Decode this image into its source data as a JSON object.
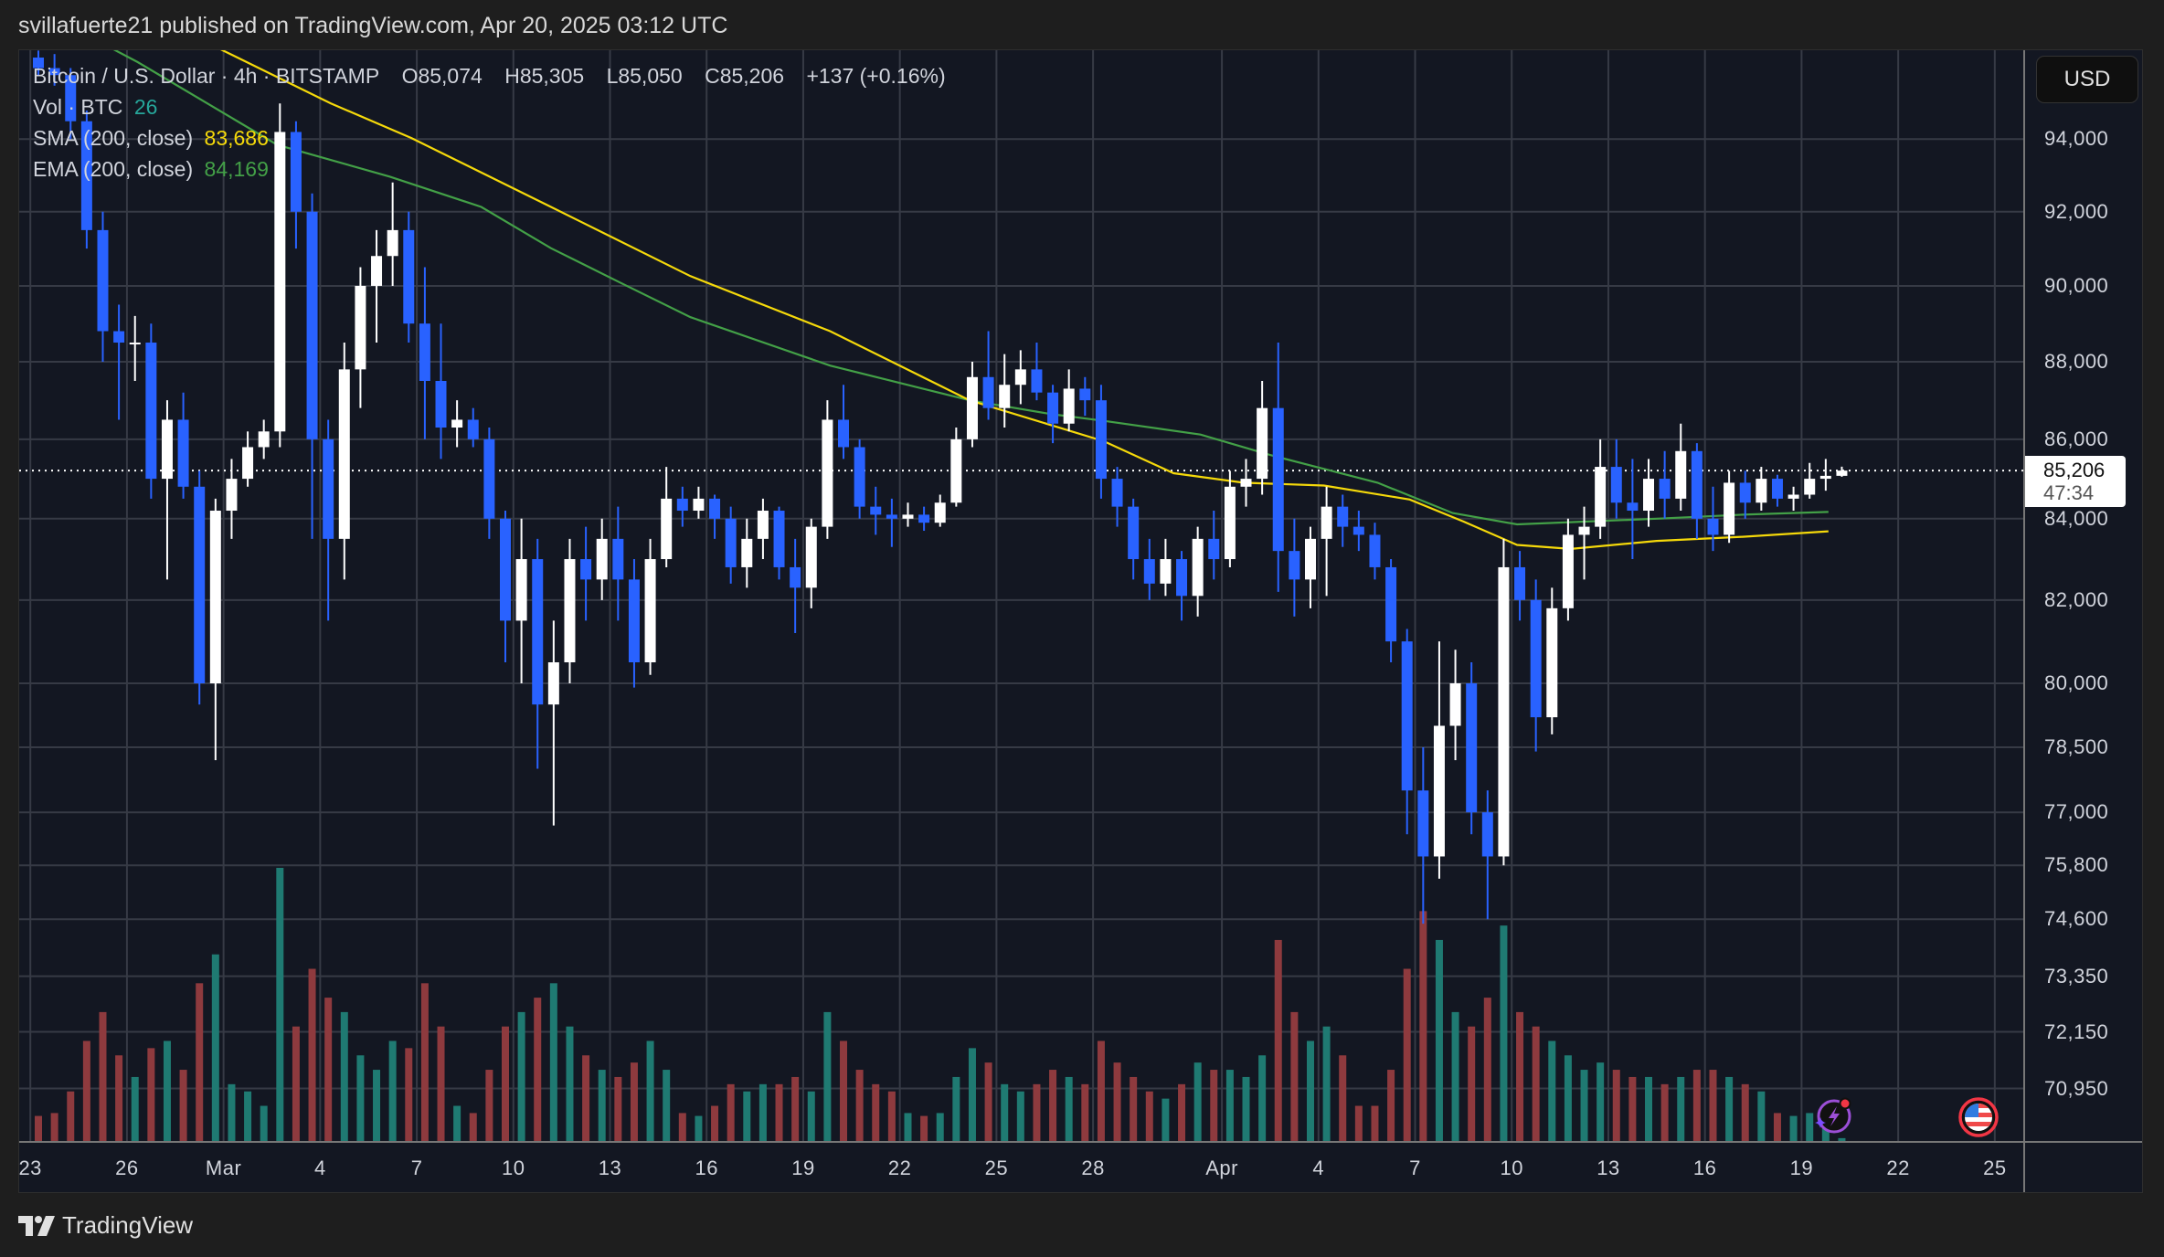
{
  "header": {
    "published": "svillafuerte21 published on TradingView.com, Apr 20, 2025 03:12 UTC"
  },
  "legend": {
    "symbol": "Bitcoin / U.S. Dollar · 4h · BITSTAMP",
    "open": "O85,074",
    "high": "H85,305",
    "low": "L85,050",
    "close": "C85,206",
    "change": "+137 (+0.16%)",
    "vol_label": "Vol · BTC",
    "vol_value": "26",
    "sma_label": "SMA (200, close)",
    "sma_value": "83,686",
    "ema_label": "EMA (200, close)",
    "ema_value": "84,169"
  },
  "price_axis": {
    "currency_button": "USD",
    "last_price": "85,206",
    "countdown": "47:34"
  },
  "footer": {
    "brand": "TradingView"
  },
  "icons": {
    "logo": "tradingview-logo-icon",
    "event1": "lightning-event-icon",
    "event2": "us-flag-event-icon"
  },
  "colors": {
    "up": "#ffffff",
    "down": "#2962ff",
    "vol_up": "#1f7a72",
    "vol_down": "#8e3a3e",
    "sma": "#f5d90a",
    "ema": "#43a047",
    "background": "#131722",
    "grid": "#363a45"
  },
  "chart_data": {
    "type": "candlestick",
    "title": "Bitcoin / U.S. Dollar · 4h · BITSTAMP",
    "y_scale": "log",
    "ylim": [
      69800,
      97000
    ],
    "grid": true,
    "candle_interval": "12h (approximate reading of 4h chart)",
    "start": "2025-02-23 00:00",
    "price_ticks": [
      94000,
      92000,
      90000,
      88000,
      86000,
      84000,
      82000,
      80000,
      78500,
      77000,
      75800,
      74600,
      73350,
      72150,
      70950
    ],
    "price_tick_labels": [
      "94,000",
      "92,000",
      "90,000",
      "88,000",
      "86,000",
      "84,000",
      "82,000",
      "80,000",
      "78,500",
      "77,000",
      "75,800",
      "74,600",
      "73,350",
      "72,150",
      "70,950"
    ],
    "time_ticks": [
      {
        "label": "23",
        "date": "2025-02-23"
      },
      {
        "label": "26",
        "date": "2025-02-26"
      },
      {
        "label": "Mar",
        "date": "2025-03-01"
      },
      {
        "label": "4",
        "date": "2025-03-04"
      },
      {
        "label": "7",
        "date": "2025-03-07"
      },
      {
        "label": "10",
        "date": "2025-03-10"
      },
      {
        "label": "13",
        "date": "2025-03-13"
      },
      {
        "label": "16",
        "date": "2025-03-16"
      },
      {
        "label": "19",
        "date": "2025-03-19"
      },
      {
        "label": "22",
        "date": "2025-03-22"
      },
      {
        "label": "25",
        "date": "2025-03-25"
      },
      {
        "label": "28",
        "date": "2025-03-28"
      },
      {
        "label": "Apr",
        "date": "2025-04-01"
      },
      {
        "label": "4",
        "date": "2025-04-04"
      },
      {
        "label": "7",
        "date": "2025-04-07"
      },
      {
        "label": "10",
        "date": "2025-04-10"
      },
      {
        "label": "13",
        "date": "2025-04-13"
      },
      {
        "label": "16",
        "date": "2025-04-16"
      },
      {
        "label": "19",
        "date": "2025-04-19"
      },
      {
        "label": "22",
        "date": "2025-04-22"
      },
      {
        "label": "25",
        "date": "2025-04-25"
      }
    ],
    "last_price": 85206,
    "ohlc": [
      [
        96300,
        96500,
        95800,
        96000
      ],
      [
        96000,
        96400,
        95500,
        95800
      ],
      [
        95800,
        96000,
        94000,
        94500
      ],
      [
        94500,
        94800,
        91000,
        91500
      ],
      [
        91500,
        92000,
        88000,
        88800
      ],
      [
        88800,
        89500,
        86500,
        88500
      ],
      [
        88500,
        89200,
        87500,
        88500
      ],
      [
        88500,
        89000,
        84500,
        85000
      ],
      [
        85000,
        87000,
        82500,
        86500
      ],
      [
        86500,
        87200,
        84500,
        84800
      ],
      [
        84800,
        85200,
        79500,
        80000
      ],
      [
        80000,
        84500,
        78200,
        84200
      ],
      [
        84200,
        85500,
        83500,
        85000
      ],
      [
        85000,
        86200,
        84800,
        85800
      ],
      [
        85800,
        86500,
        85500,
        86200
      ],
      [
        86200,
        95000,
        85800,
        94200
      ],
      [
        94200,
        94500,
        91000,
        92000
      ],
      [
        92000,
        92500,
        83500,
        86000
      ],
      [
        86000,
        86500,
        81500,
        83500
      ],
      [
        83500,
        88500,
        82500,
        87800
      ],
      [
        87800,
        90500,
        86800,
        90000
      ],
      [
        90000,
        91500,
        88500,
        90800
      ],
      [
        90800,
        92800,
        90000,
        91500
      ],
      [
        91500,
        92000,
        88500,
        89000
      ],
      [
        89000,
        90500,
        86000,
        87500
      ],
      [
        87500,
        89000,
        85500,
        86300
      ],
      [
        86300,
        87000,
        85800,
        86500
      ],
      [
        86500,
        86800,
        85800,
        86000
      ],
      [
        86000,
        86300,
        83500,
        84000
      ],
      [
        84000,
        84200,
        80500,
        81500
      ],
      [
        81500,
        84000,
        80000,
        83000
      ],
      [
        83000,
        83500,
        78000,
        79500
      ],
      [
        79500,
        81500,
        76700,
        80500
      ],
      [
        80500,
        83500,
        80000,
        83000
      ],
      [
        83000,
        83800,
        81500,
        82500
      ],
      [
        82500,
        84000,
        82000,
        83500
      ],
      [
        83500,
        84300,
        81500,
        82500
      ],
      [
        82500,
        83000,
        79900,
        80500
      ],
      [
        80500,
        83500,
        80200,
        83000
      ],
      [
        83000,
        85300,
        82800,
        84500
      ],
      [
        84500,
        84800,
        83800,
        84200
      ],
      [
        84200,
        84800,
        84000,
        84500
      ],
      [
        84500,
        84600,
        83500,
        84000
      ],
      [
        84000,
        84300,
        82400,
        82800
      ],
      [
        82800,
        84000,
        82300,
        83500
      ],
      [
        83500,
        84500,
        83000,
        84200
      ],
      [
        84200,
        84300,
        82500,
        82800
      ],
      [
        82800,
        83500,
        81200,
        82300
      ],
      [
        82300,
        84000,
        81800,
        83800
      ],
      [
        83800,
        87000,
        83500,
        86500
      ],
      [
        86500,
        87400,
        85500,
        85800
      ],
      [
        85800,
        86000,
        84000,
        84300
      ],
      [
        84300,
        84800,
        83600,
        84100
      ],
      [
        84100,
        84500,
        83300,
        84000
      ],
      [
        84000,
        84400,
        83800,
        84100
      ],
      [
        84100,
        84300,
        83700,
        83900
      ],
      [
        83900,
        84600,
        83800,
        84400
      ],
      [
        84400,
        86300,
        84300,
        86000
      ],
      [
        86000,
        88000,
        85800,
        87600
      ],
      [
        87600,
        88800,
        86500,
        86800
      ],
      [
        86800,
        88200,
        86300,
        87400
      ],
      [
        87400,
        88300,
        86900,
        87800
      ],
      [
        87800,
        88500,
        87000,
        87200
      ],
      [
        87200,
        87400,
        85900,
        86400
      ],
      [
        86400,
        87800,
        86200,
        87300
      ],
      [
        87300,
        87600,
        86600,
        87000
      ],
      [
        87000,
        87400,
        84500,
        85000
      ],
      [
        85000,
        85300,
        83800,
        84300
      ],
      [
        84300,
        84500,
        82500,
        83000
      ],
      [
        83000,
        83500,
        82000,
        82400
      ],
      [
        82400,
        83500,
        82100,
        83000
      ],
      [
        83000,
        83200,
        81500,
        82100
      ],
      [
        82100,
        83800,
        81600,
        83500
      ],
      [
        83500,
        84200,
        82500,
        83000
      ],
      [
        83000,
        85200,
        82800,
        84800
      ],
      [
        84800,
        85500,
        84300,
        85000
      ],
      [
        85000,
        87500,
        84600,
        86800
      ],
      [
        86800,
        88500,
        82200,
        83200
      ],
      [
        83200,
        84000,
        81600,
        82500
      ],
      [
        82500,
        83800,
        81800,
        83500
      ],
      [
        83500,
        84800,
        82100,
        84300
      ],
      [
        84300,
        84600,
        83300,
        83800
      ],
      [
        83800,
        84200,
        83200,
        83600
      ],
      [
        83600,
        83900,
        82500,
        82800
      ],
      [
        82800,
        83000,
        80500,
        81000
      ],
      [
        81000,
        81300,
        76500,
        77500
      ],
      [
        77500,
        78500,
        74500,
        76000
      ],
      [
        76000,
        81000,
        75500,
        79000
      ],
      [
        79000,
        80800,
        78200,
        80000
      ],
      [
        80000,
        80500,
        76500,
        77000
      ],
      [
        77000,
        77500,
        74600,
        76000
      ],
      [
        76000,
        83500,
        75800,
        82800
      ],
      [
        82800,
        83200,
        81500,
        82000
      ],
      [
        82000,
        82500,
        78400,
        79200
      ],
      [
        79200,
        82300,
        78800,
        81800
      ],
      [
        81800,
        84000,
        81500,
        83600
      ],
      [
        83600,
        84300,
        82500,
        83800
      ],
      [
        83800,
        86000,
        83500,
        85300
      ],
      [
        85300,
        86000,
        84000,
        84400
      ],
      [
        84400,
        85500,
        83000,
        84200
      ],
      [
        84200,
        85500,
        83800,
        85000
      ],
      [
        85000,
        85700,
        84000,
        84500
      ],
      [
        84500,
        86400,
        84200,
        85700
      ],
      [
        85700,
        85900,
        83500,
        84000
      ],
      [
        84000,
        84800,
        83200,
        83600
      ],
      [
        83600,
        85200,
        83400,
        84900
      ],
      [
        84900,
        85200,
        84000,
        84400
      ],
      [
        84400,
        85300,
        84200,
        85000
      ],
      [
        85000,
        85100,
        84300,
        84500
      ],
      [
        84500,
        84800,
        84200,
        84600
      ],
      [
        84600,
        85400,
        84500,
        85000
      ],
      [
        85000,
        85500,
        84700,
        85074
      ],
      [
        85074,
        85305,
        85050,
        85206
      ]
    ],
    "volume": [
      180,
      200,
      350,
      700,
      900,
      600,
      450,
      650,
      700,
      500,
      1100,
      1300,
      400,
      350,
      250,
      1900,
      800,
      1200,
      1000,
      900,
      600,
      500,
      700,
      650,
      1100,
      800,
      250,
      200,
      500,
      800,
      900,
      1000,
      1100,
      800,
      600,
      500,
      450,
      550,
      700,
      500,
      200,
      180,
      250,
      400,
      350,
      400,
      400,
      450,
      350,
      900,
      700,
      500,
      400,
      350,
      200,
      180,
      200,
      450,
      650,
      550,
      400,
      350,
      400,
      500,
      450,
      400,
      700,
      550,
      450,
      350,
      300,
      400,
      550,
      500,
      500,
      450,
      600,
      1400,
      900,
      700,
      800,
      600,
      250,
      250,
      500,
      1200,
      1600,
      1400,
      900,
      800,
      1000,
      1500,
      900,
      800,
      700,
      600,
      500,
      550,
      500,
      450,
      450,
      400,
      450,
      500,
      500,
      450,
      400,
      350,
      200,
      180,
      200,
      220,
      26
    ],
    "sma_200": [
      [
        "2025-02-23 00:00",
        98500
      ],
      [
        "2025-02-28 20:00",
        96570
      ],
      [
        "2025-03-04 08:00",
        95000
      ],
      [
        "2025-03-06 20:00",
        94030
      ],
      [
        "2025-03-11 04:00",
        92130
      ],
      [
        "2025-03-15 12:00",
        90260
      ],
      [
        "2025-03-19 20:00",
        88800
      ],
      [
        "2025-03-24 04:00",
        87000
      ],
      [
        "2025-03-28 08:00",
        85950
      ],
      [
        "2025-03-30 12:00",
        85140
      ],
      [
        "2025-04-01 16:00",
        84900
      ],
      [
        "2025-04-04 04:00",
        84830
      ],
      [
        "2025-04-06 20:00",
        84480
      ],
      [
        "2025-04-08 12:00",
        83930
      ],
      [
        "2025-04-10 04:00",
        83350
      ],
      [
        "2025-04-11 20:00",
        83250
      ],
      [
        "2025-04-14 12:00",
        83450
      ],
      [
        "2025-04-17 04:00",
        83550
      ],
      [
        "2025-04-19 20:00",
        83686
      ]
    ],
    "ema_200": [
      [
        "2025-02-23 00:00",
        97800
      ],
      [
        "2025-02-26 08:00",
        96170
      ],
      [
        "2025-03-02 16:00",
        93840
      ],
      [
        "2025-03-06 04:00",
        92960
      ],
      [
        "2025-03-09 00:00",
        92130
      ],
      [
        "2025-03-11 04:00",
        91010
      ],
      [
        "2025-03-13 08:00",
        90080
      ],
      [
        "2025-03-15 12:00",
        89170
      ],
      [
        "2025-03-19 20:00",
        87900
      ],
      [
        "2025-03-24 04:00",
        87000
      ],
      [
        "2025-03-26 16:00",
        86650
      ],
      [
        "2025-03-28 08:00",
        86470
      ],
      [
        "2025-03-31 08:00",
        86120
      ],
      [
        "2025-04-02 12:00",
        85600
      ],
      [
        "2025-04-05 20:00",
        84900
      ],
      [
        "2025-04-08 04:00",
        84140
      ],
      [
        "2025-04-10 04:00",
        83860
      ],
      [
        "2025-04-12 08:00",
        83930
      ],
      [
        "2025-04-14 12:00",
        84000
      ],
      [
        "2025-04-17 04:00",
        84100
      ],
      [
        "2025-04-19 20:00",
        84169
      ]
    ]
  }
}
